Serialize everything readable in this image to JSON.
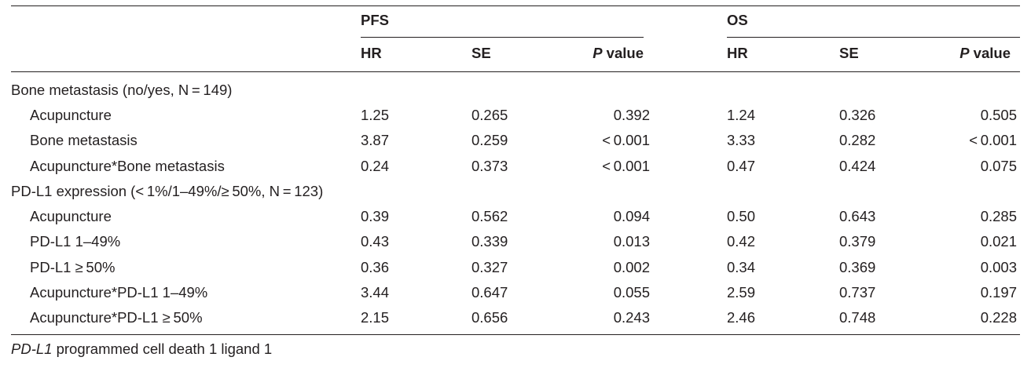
{
  "table": {
    "group_headers": [
      "PFS",
      "OS"
    ],
    "col_headers": [
      {
        "label": "HR",
        "italic_prefix": ""
      },
      {
        "label": "SE",
        "italic_prefix": ""
      },
      {
        "label": " value",
        "italic_prefix": "P"
      },
      {
        "label": "HR",
        "italic_prefix": ""
      },
      {
        "label": "SE",
        "italic_prefix": ""
      },
      {
        "label": " value",
        "italic_prefix": "P"
      }
    ],
    "rows": [
      {
        "label": "Bone metastasis (no/yes, N = 149)",
        "section": true,
        "values": [
          "",
          "",
          "",
          "",
          "",
          ""
        ]
      },
      {
        "label": "Acupuncture",
        "section": false,
        "values": [
          "1.25",
          "0.265",
          "0.392",
          "1.24",
          "0.326",
          "0.505"
        ]
      },
      {
        "label": "Bone metastasis",
        "section": false,
        "values": [
          "3.87",
          "0.259",
          "< 0.001",
          "3.33",
          "0.282",
          "< 0.001"
        ]
      },
      {
        "label": "Acupuncture*Bone metastasis",
        "section": false,
        "values": [
          "0.24",
          "0.373",
          "< 0.001",
          "0.47",
          "0.424",
          "0.075"
        ]
      },
      {
        "label": "PD-L1 expression (< 1%/1–49%/≥ 50%, N = 123)",
        "section": true,
        "values": [
          "",
          "",
          "",
          "",
          "",
          ""
        ]
      },
      {
        "label": "Acupuncture",
        "section": false,
        "values": [
          "0.39",
          "0.562",
          "0.094",
          "0.50",
          "0.643",
          "0.285"
        ]
      },
      {
        "label": "PD-L1 1–49%",
        "section": false,
        "values": [
          "0.43",
          "0.339",
          "0.013",
          "0.42",
          "0.379",
          "0.021"
        ]
      },
      {
        "label": "PD-L1 ≥ 50%",
        "section": false,
        "values": [
          "0.36",
          "0.327",
          "0.002",
          "0.34",
          "0.369",
          "0.003"
        ]
      },
      {
        "label": "Acupuncture*PD-L1 1–49%",
        "section": false,
        "values": [
          "3.44",
          "0.647",
          "0.055",
          "2.59",
          "0.737",
          "0.197"
        ]
      },
      {
        "label": "Acupuncture*PD-L1 ≥ 50%",
        "section": false,
        "values": [
          "2.15",
          "0.656",
          "0.243",
          "2.46",
          "0.748",
          "0.228"
        ]
      }
    ]
  },
  "footnote": {
    "abbr": "PD-L1",
    "text": " programmed cell death 1 ligand 1"
  }
}
